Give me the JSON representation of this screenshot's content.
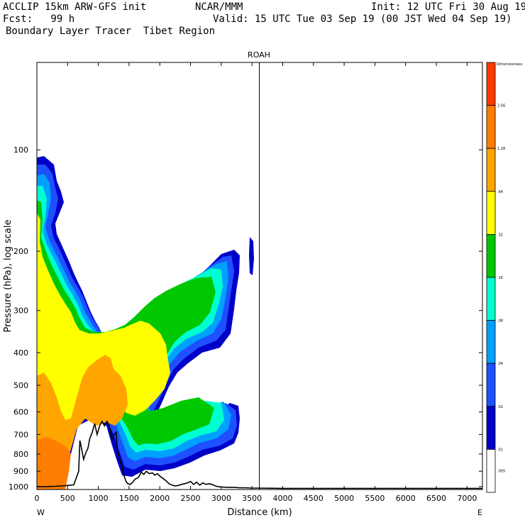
{
  "header": {
    "model": "ACCLIP 15km ARW-GFS init",
    "org": "NCAR/MMM",
    "init": "Init: 12 UTC Fri 30 Aug 19",
    "fcst": "Fcst:   99 h",
    "valid": "Valid: 15 UTC Tue 03 Sep 19 (00 JST Wed 04 Sep 19)",
    "field": "Boundary Layer Tracer  Tibet Region"
  },
  "chart_data": {
    "type": "heatmap",
    "title": "ROAH",
    "xlabel": "Distance (km)",
    "ylabel": "Pressure (hPa), log scale",
    "x_left_label": "W",
    "x_right_label": "E",
    "xlim": [
      0,
      7250
    ],
    "ylim": [
      1020,
      55
    ],
    "y_scale": "log",
    "x_ticks": [
      0,
      500,
      1000,
      1500,
      2000,
      2500,
      3000,
      3500,
      4000,
      4500,
      5000,
      5500,
      6000,
      6500,
      7000
    ],
    "y_ticks": [
      100,
      200,
      300,
      400,
      500,
      600,
      700,
      800,
      900,
      1000
    ],
    "marker_line_x": 3620,
    "colorbar": {
      "top_label": "Dimensionless",
      "levels": [
        "2.56",
        "1.28",
        ".64",
        ".32",
        ".16",
        ".08",
        ".04",
        ".02",
        ".01",
        ".005"
      ],
      "colors": [
        "#ff3a00",
        "#ff7d00",
        "#ffa500",
        "#ffff00",
        "#00c800",
        "#00ffd0",
        "#00a0ff",
        "#1e50ff",
        "#0000c8",
        "#ffffff"
      ]
    },
    "terrain_surface": {
      "x": [
        0,
        150,
        300,
        450,
        600,
        680,
        700,
        720,
        760,
        800,
        830,
        860,
        900,
        940,
        980,
        1020,
        1060,
        1100,
        1140,
        1180,
        1220,
        1260,
        1290,
        1310,
        1330,
        1360,
        1390,
        1420,
        1450,
        1480,
        1520,
        1560,
        1600,
        1650,
        1700,
        1740,
        1780,
        1830,
        1880,
        1920,
        1960,
        2000,
        2050,
        2100,
        2150,
        2200,
        2250,
        2300,
        2350,
        2400,
        2450,
        2500,
        2550,
        2600,
        2650,
        2700,
        2750,
        2800,
        2850,
        2900,
        2950,
        3000,
        3100,
        3200,
        3300,
        3400,
        3500,
        3600,
        4000,
        5000,
        6000,
        7000,
        7250
      ],
      "pressure": [
        1000,
        1000,
        998,
        994,
        988,
        900,
        730,
        760,
        830,
        790,
        770,
        720,
        690,
        650,
        700,
        660,
        640,
        660,
        640,
        660,
        720,
        700,
        690,
        780,
        800,
        840,
        880,
        930,
        965,
        980,
        985,
        970,
        950,
        940,
        905,
        920,
        900,
        915,
        910,
        925,
        915,
        930,
        945,
        960,
        980,
        990,
        995,
        992,
        985,
        980,
        975,
        965,
        985,
        970,
        990,
        975,
        985,
        980,
        985,
        995,
        1000,
        1003,
        1005,
        1005,
        1008,
        1008,
        1010,
        1010,
        1012,
        1012,
        1012,
        1012,
        1012
      ]
    }
  }
}
